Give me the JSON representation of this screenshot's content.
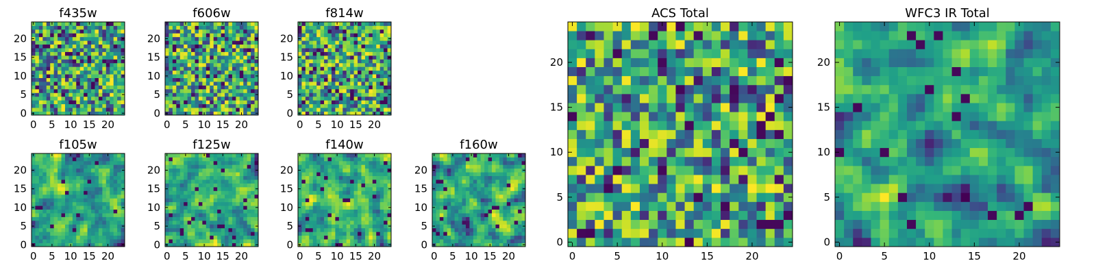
{
  "chart_data": [
    {
      "type": "heatmap",
      "title": "f435w",
      "grid_size": 25,
      "xlim": [
        0,
        24
      ],
      "ylim": [
        0,
        24
      ],
      "xticks": [
        0,
        5,
        10,
        15,
        20
      ],
      "yticks": [
        0,
        5,
        10,
        15,
        20
      ],
      "colormap": "viridis",
      "seed": 11,
      "smooth": 0
    },
    {
      "type": "heatmap",
      "title": "f606w",
      "grid_size": 25,
      "xlim": [
        0,
        24
      ],
      "ylim": [
        0,
        24
      ],
      "xticks": [
        0,
        5,
        10,
        15,
        20
      ],
      "yticks": [
        0,
        5,
        10,
        15,
        20
      ],
      "colormap": "viridis",
      "seed": 23,
      "smooth": 0
    },
    {
      "type": "heatmap",
      "title": "f814w",
      "grid_size": 25,
      "xlim": [
        0,
        24
      ],
      "ylim": [
        0,
        24
      ],
      "xticks": [
        0,
        5,
        10,
        15,
        20
      ],
      "yticks": [
        0,
        5,
        10,
        15,
        20
      ],
      "colormap": "viridis",
      "seed": 37,
      "smooth": 0
    },
    {
      "type": "heatmap",
      "title": "f105w",
      "grid_size": 25,
      "xlim": [
        0,
        24
      ],
      "ylim": [
        0,
        24
      ],
      "xticks": [
        0,
        5,
        10,
        15,
        20
      ],
      "yticks": [
        0,
        5,
        10,
        15,
        20
      ],
      "colormap": "viridis",
      "seed": 41,
      "smooth": 1
    },
    {
      "type": "heatmap",
      "title": "f125w",
      "grid_size": 25,
      "xlim": [
        0,
        24
      ],
      "ylim": [
        0,
        24
      ],
      "xticks": [
        0,
        5,
        10,
        15,
        20
      ],
      "yticks": [
        0,
        5,
        10,
        15,
        20
      ],
      "colormap": "viridis",
      "seed": 53,
      "smooth": 1
    },
    {
      "type": "heatmap",
      "title": "f140w",
      "grid_size": 25,
      "xlim": [
        0,
        24
      ],
      "ylim": [
        0,
        24
      ],
      "xticks": [
        0,
        5,
        10,
        15,
        20
      ],
      "yticks": [
        0,
        5,
        10,
        15,
        20
      ],
      "colormap": "viridis",
      "seed": 67,
      "smooth": 1
    },
    {
      "type": "heatmap",
      "title": "f160w",
      "grid_size": 25,
      "xlim": [
        0,
        24
      ],
      "ylim": [
        0,
        24
      ],
      "xticks": [
        0,
        5,
        10,
        15,
        20
      ],
      "yticks": [
        0,
        5,
        10,
        15,
        20
      ],
      "colormap": "viridis",
      "seed": 79,
      "smooth": 1
    },
    {
      "type": "heatmap",
      "title": "ACS Total",
      "grid_size": 25,
      "xlim": [
        0,
        24
      ],
      "ylim": [
        0,
        24
      ],
      "xticks": [
        0,
        5,
        10,
        15,
        20
      ],
      "yticks": [
        0,
        5,
        10,
        15,
        20
      ],
      "colormap": "viridis",
      "seed": 97,
      "smooth": 0
    },
    {
      "type": "heatmap",
      "title": "WFC3 IR Total",
      "grid_size": 25,
      "xlim": [
        0,
        24
      ],
      "ylim": [
        0,
        24
      ],
      "xticks": [
        0,
        5,
        10,
        15,
        20
      ],
      "yticks": [
        0,
        5,
        10,
        15,
        20
      ],
      "colormap": "viridis",
      "seed": 131,
      "smooth": 1
    }
  ]
}
